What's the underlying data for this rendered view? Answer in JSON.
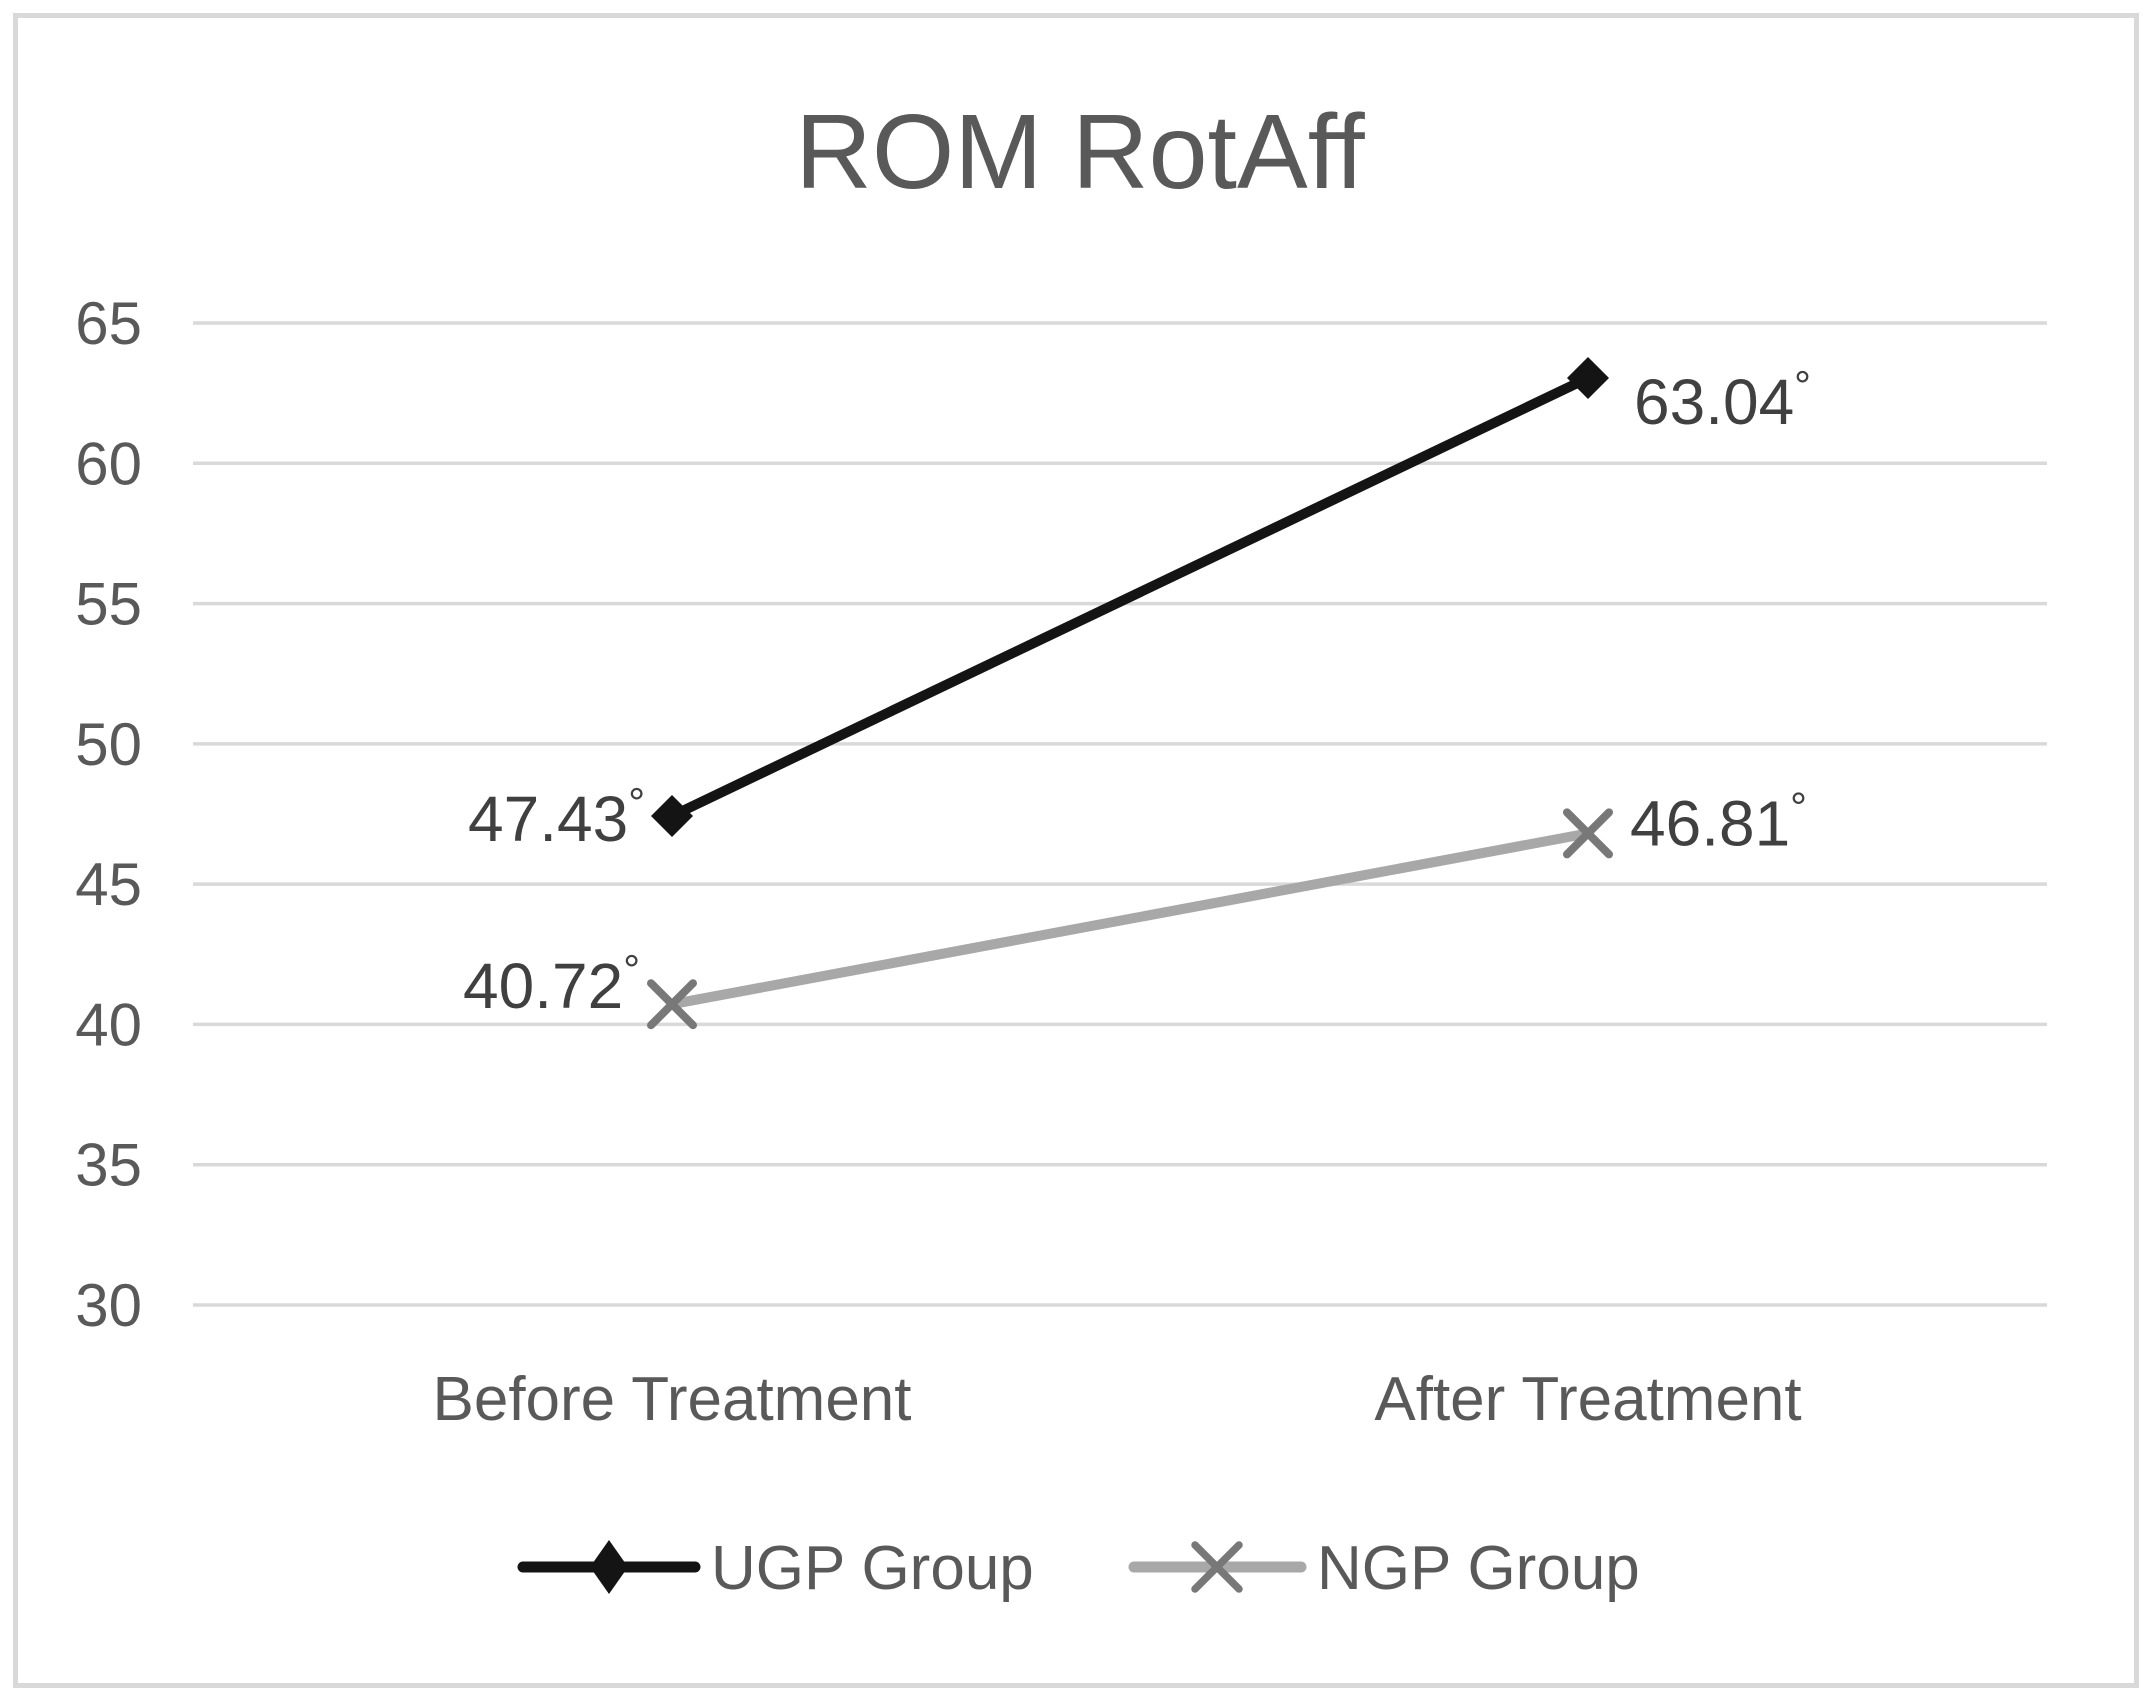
{
  "chart_data": {
    "type": "line",
    "title": "ROM RotAff",
    "categories": [
      "Before Treatment",
      "After Treatment"
    ],
    "series": [
      {
        "name": "UGP Group",
        "values": [
          47.43,
          63.04
        ],
        "labels": [
          "47.43°",
          "63.04°"
        ],
        "color": "#141414",
        "marker": "diamond",
        "marker_color": "#141414"
      },
      {
        "name": "NGP Group",
        "values": [
          40.72,
          46.81
        ],
        "labels": [
          "40.72°",
          "46.81°"
        ],
        "color": "#a8a8a8",
        "marker": "x",
        "marker_color": "#787878"
      }
    ],
    "unit": "°",
    "y_axis": {
      "min": 30,
      "max": 65,
      "step": 5,
      "ticks": [
        65,
        60,
        55,
        50,
        45,
        40,
        35,
        30
      ]
    },
    "x_axis": {
      "ticks": [
        "Before Treatment",
        "After Treatment"
      ]
    },
    "grid": true,
    "legend_position": "bottom",
    "legend": [
      "UGP Group",
      "NGP Group"
    ],
    "colors": {
      "grid": "#d9d9d9",
      "frame": "#d9d9d9",
      "axis_text": "#595959",
      "title_text": "#595959",
      "data_label_text": "#404040"
    }
  }
}
